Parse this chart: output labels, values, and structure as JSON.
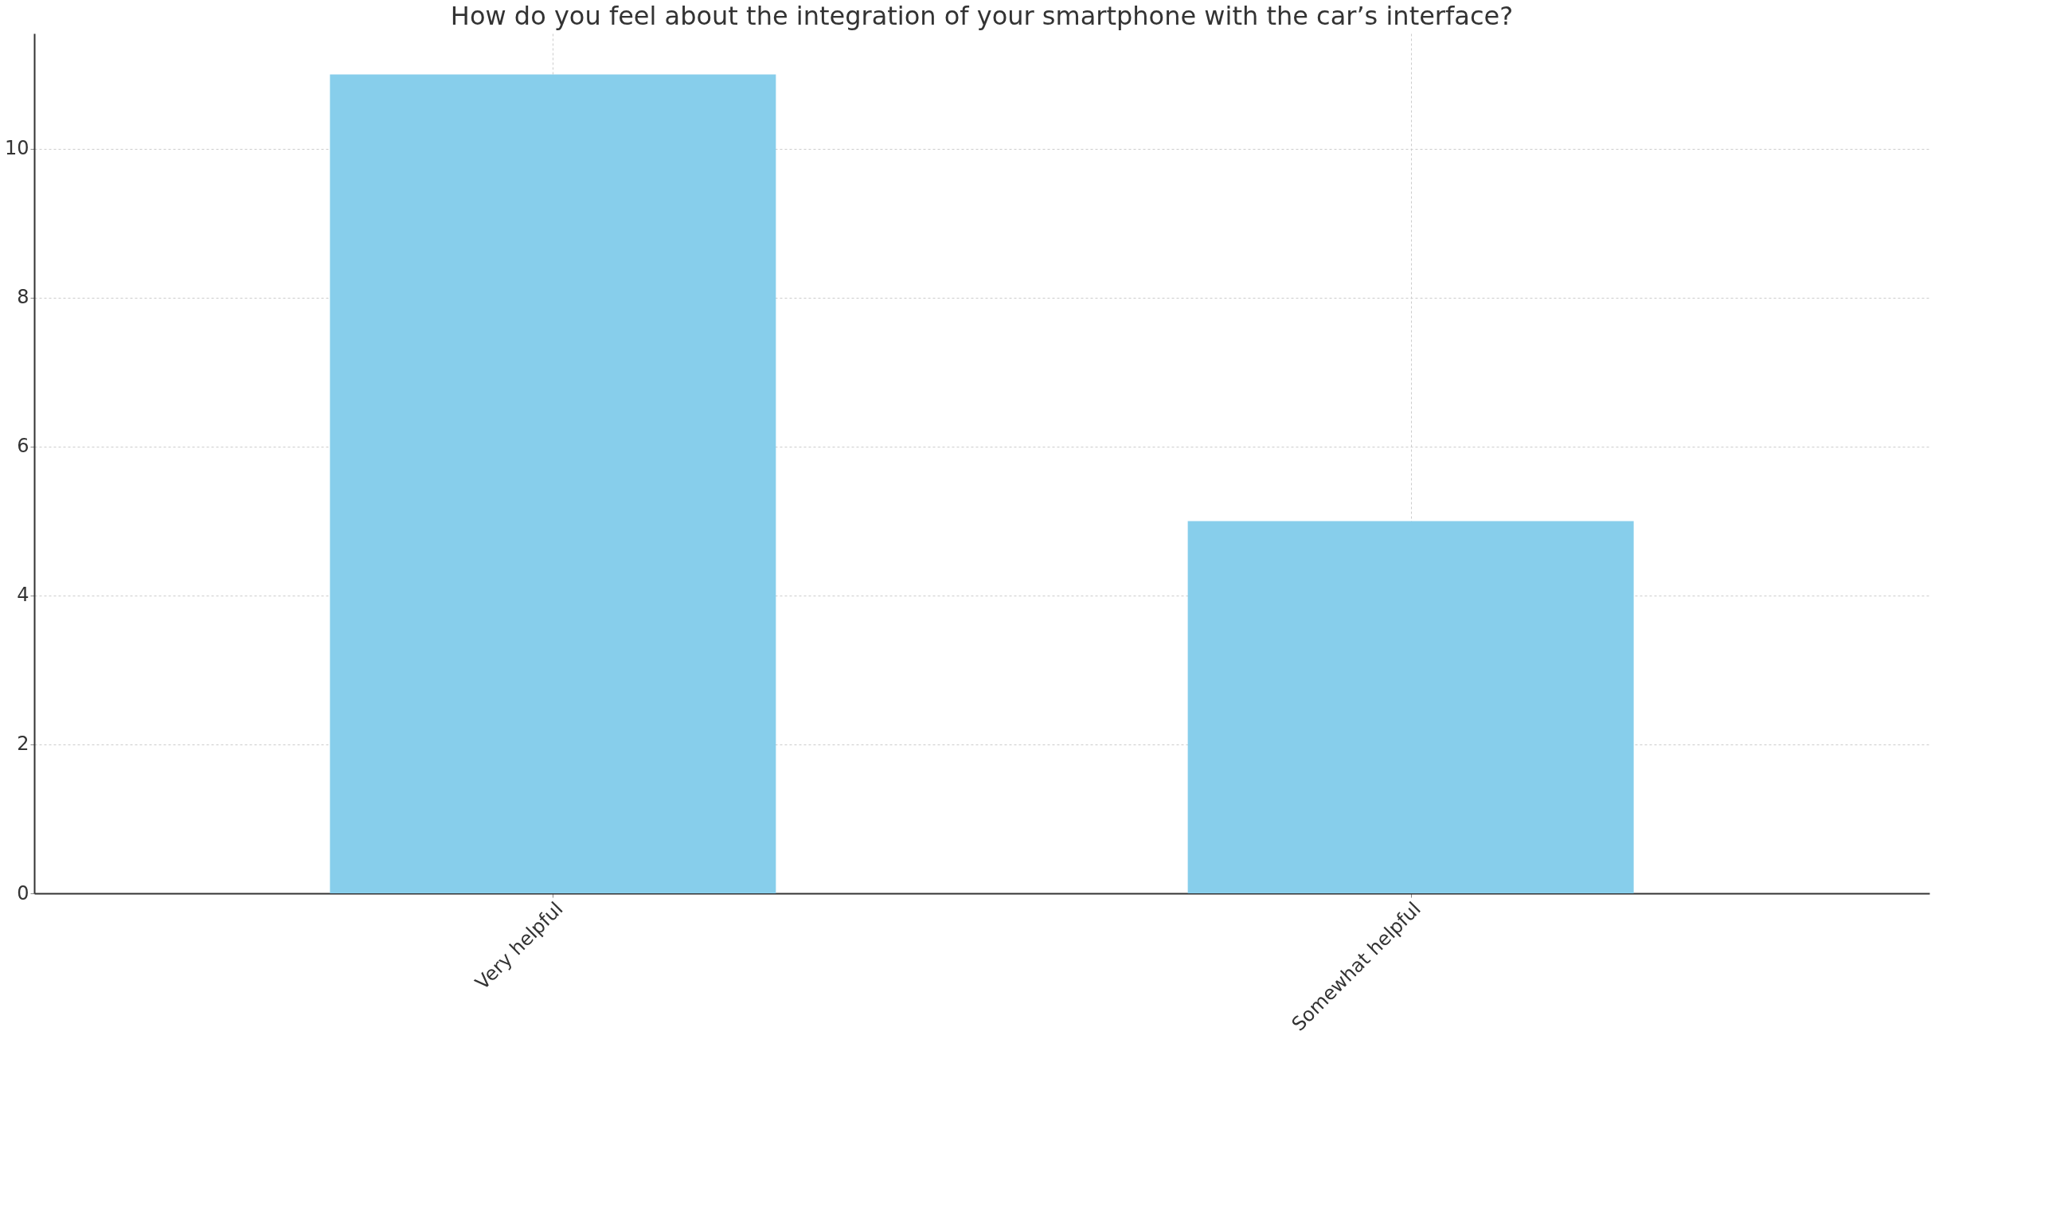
{
  "chart_data": {
    "type": "bar",
    "title": "How do you feel about the integration of your smartphone with the car’s interface?",
    "categories": [
      "Very helpful",
      "Somewhat helpful"
    ],
    "values": [
      11,
      5
    ],
    "color": "#87ceeb",
    "ylim": [
      0,
      11.55
    ],
    "yticks": [
      0,
      2,
      4,
      6,
      8,
      10
    ],
    "grid": true
  }
}
